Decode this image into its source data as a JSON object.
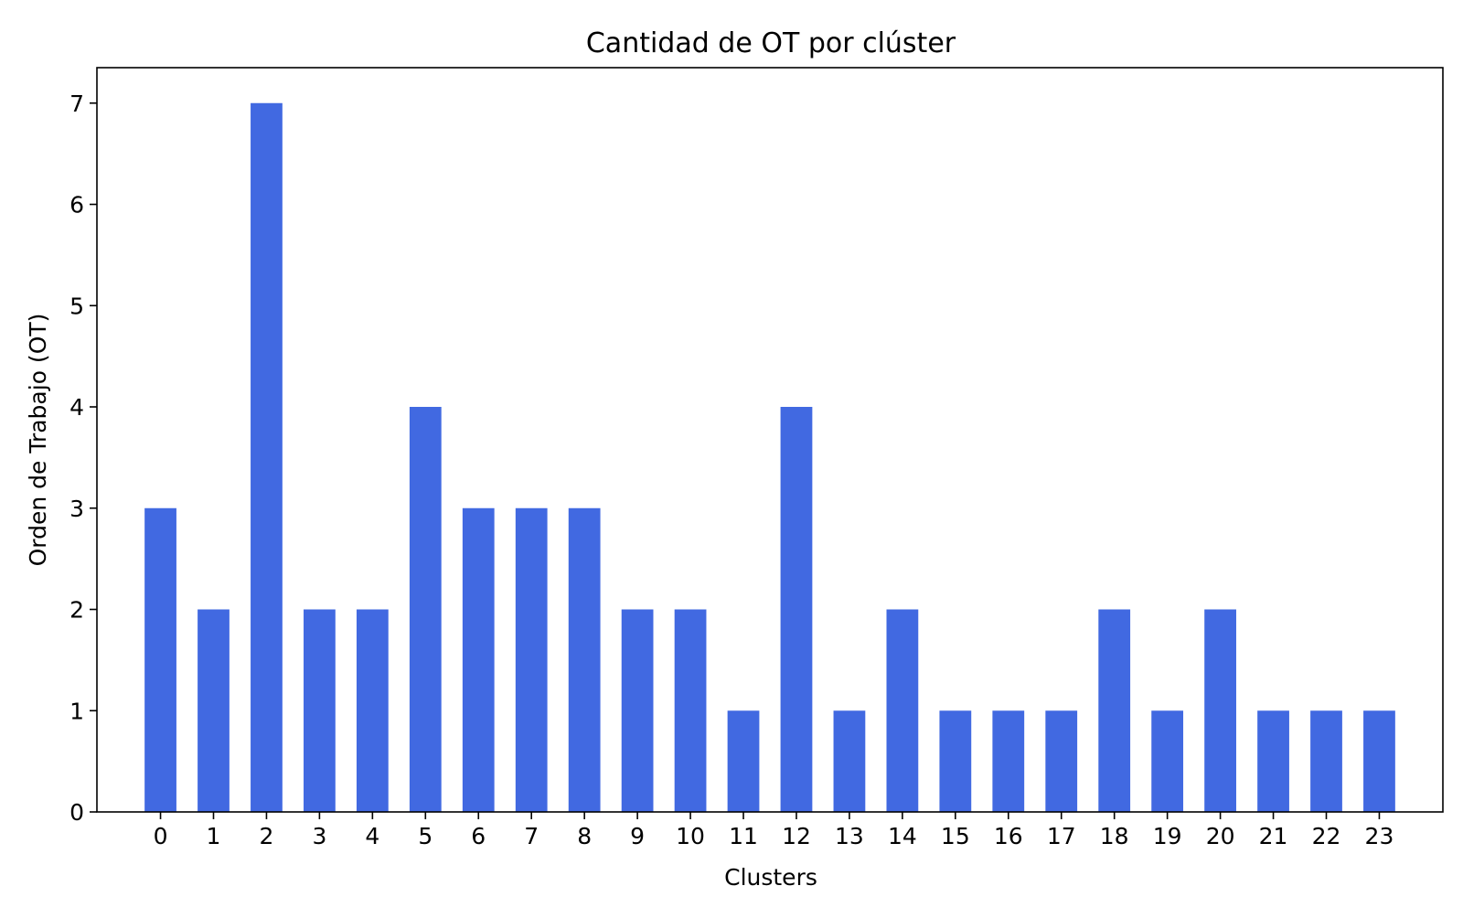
{
  "chart_data": {
    "type": "bar",
    "title": "Cantidad de OT por clúster",
    "xlabel": "Clusters",
    "ylabel": "Orden de Trabajo (OT)",
    "categories": [
      "0",
      "1",
      "2",
      "3",
      "4",
      "5",
      "6",
      "7",
      "8",
      "9",
      "10",
      "11",
      "12",
      "13",
      "14",
      "15",
      "16",
      "17",
      "18",
      "19",
      "20",
      "21",
      "22",
      "23"
    ],
    "values": [
      3,
      2,
      7,
      2,
      2,
      4,
      3,
      3,
      3,
      2,
      2,
      1,
      4,
      1,
      2,
      1,
      1,
      1,
      2,
      1,
      2,
      1,
      1,
      1
    ],
    "ylim": [
      0,
      7.35
    ],
    "yticks": [
      0,
      1,
      2,
      3,
      4,
      5,
      6,
      7
    ],
    "grid": false,
    "legend": "none",
    "bar_color": "#4169e1",
    "axis_color": "#000000"
  }
}
